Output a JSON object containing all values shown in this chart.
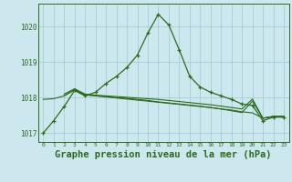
{
  "background_color": "#cce8ee",
  "plot_bg_color": "#cce8ee",
  "grid_color": "#9dc8d2",
  "line_color": "#2d6a1e",
  "xlabel": "Graphe pression niveau de la mer (hPa)",
  "xlabel_fontsize": 7.5,
  "ylim": [
    1016.75,
    1020.65
  ],
  "yticks": [
    1017,
    1018,
    1019,
    1020
  ],
  "xticks": [
    0,
    1,
    2,
    3,
    4,
    5,
    6,
    7,
    8,
    9,
    10,
    11,
    12,
    13,
    14,
    15,
    16,
    17,
    18,
    19,
    20,
    21,
    22,
    23
  ],
  "line1_x": [
    0,
    1,
    2,
    3,
    4,
    5,
    6,
    7,
    8,
    9,
    10,
    11,
    12,
    13,
    14,
    15,
    16,
    17,
    18,
    19,
    20,
    21,
    22,
    23
  ],
  "line1_y": [
    1017.0,
    1017.35,
    1017.75,
    1018.2,
    1018.05,
    1018.15,
    1018.4,
    1018.6,
    1018.85,
    1019.2,
    1019.82,
    1020.35,
    1020.05,
    1019.35,
    1018.6,
    1018.3,
    1018.15,
    1018.05,
    1017.95,
    1017.82,
    1017.78,
    1017.35,
    1017.45,
    1017.45
  ],
  "line2_x": [
    0,
    1,
    2,
    3,
    4,
    5,
    6,
    7,
    8,
    9,
    10,
    11,
    12,
    13,
    14,
    15,
    16,
    17,
    18,
    19,
    20,
    21,
    22,
    23
  ],
  "line2_y": [
    1017.95,
    1017.97,
    1018.05,
    1018.22,
    1018.08,
    1018.05,
    1018.03,
    1018.0,
    1017.98,
    1017.95,
    1017.92,
    1017.88,
    1017.85,
    1017.82,
    1017.79,
    1017.76,
    1017.72,
    1017.68,
    1017.63,
    1017.58,
    1017.9,
    1017.42,
    1017.47,
    1017.47
  ],
  "line3_x": [
    2,
    3,
    4,
    5,
    6,
    7,
    8,
    9,
    10,
    11,
    12,
    13,
    14,
    15,
    16,
    17,
    18,
    19,
    20,
    21,
    22,
    23
  ],
  "line3_y": [
    1018.05,
    1018.22,
    1018.08,
    1018.05,
    1018.02,
    1017.99,
    1017.96,
    1017.93,
    1017.9,
    1017.87,
    1017.84,
    1017.81,
    1017.78,
    1017.75,
    1017.72,
    1017.68,
    1017.65,
    1017.6,
    1017.57,
    1017.42,
    1017.47,
    1017.47
  ],
  "line4_x": [
    2,
    3,
    4,
    5,
    6,
    7,
    8,
    9,
    10,
    11,
    12,
    13,
    14,
    15,
    16,
    17,
    18,
    19,
    20,
    21,
    22,
    23
  ],
  "line4_y": [
    1018.1,
    1018.25,
    1018.1,
    1018.07,
    1018.05,
    1018.03,
    1018.01,
    1017.99,
    1017.97,
    1017.95,
    1017.92,
    1017.89,
    1017.86,
    1017.83,
    1017.8,
    1017.76,
    1017.72,
    1017.68,
    1017.96,
    1017.42,
    1017.47,
    1017.47
  ]
}
